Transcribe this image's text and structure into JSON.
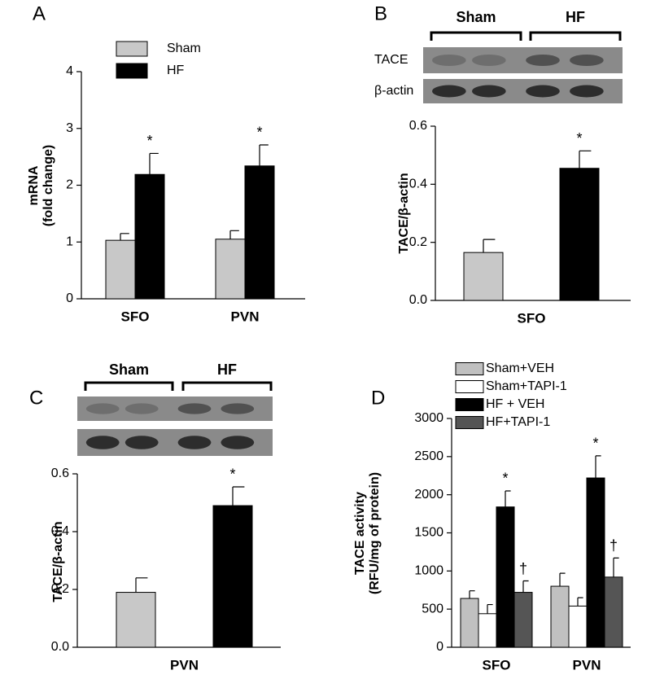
{
  "chart_data": [
    {
      "type": "bar",
      "panel": "A",
      "ylabel": [
        "mRNA",
        "(fold change)"
      ],
      "categories": [
        "SFO",
        "PVN"
      ],
      "series": [
        {
          "name": "Sham",
          "color": "#c8c8c8",
          "values": [
            1.03,
            1.05
          ],
          "errors": [
            0.12,
            0.15
          ]
        },
        {
          "name": "HF",
          "color": "#000000",
          "values": [
            2.19,
            2.34
          ],
          "errors": [
            0.37,
            0.37
          ],
          "markers": [
            "*",
            "*"
          ]
        }
      ],
      "ylim": [
        0,
        4
      ],
      "yticks": [
        0,
        1,
        2,
        3,
        4
      ],
      "legend": "top-left"
    },
    {
      "type": "bar",
      "panel": "B",
      "ylabel": "TACE/β-actin",
      "blot_rows": [
        "TACE",
        "β-actin"
      ],
      "categories": [
        "SFO"
      ],
      "series": [
        {
          "name": "Sham",
          "color": "#c8c8c8",
          "values": [
            0.165
          ],
          "errors": [
            0.045
          ]
        },
        {
          "name": "HF",
          "color": "#000000",
          "values": [
            0.455
          ],
          "errors": [
            0.06
          ],
          "markers": [
            "*"
          ]
        }
      ],
      "ylim": [
        0,
        0.6
      ],
      "yticks": [
        {
          "value": 0,
          "label": "0.0"
        },
        0.2,
        0.4,
        0.6
      ]
    },
    {
      "type": "bar",
      "panel": "C",
      "ylabel": "TACE/β-actin",
      "categories": [
        "PVN"
      ],
      "series": [
        {
          "name": "Sham",
          "color": "#c8c8c8",
          "values": [
            0.19
          ],
          "errors": [
            0.05
          ]
        },
        {
          "name": "HF",
          "color": "#000000",
          "values": [
            0.49
          ],
          "errors": [
            0.065
          ],
          "markers": [
            "*"
          ]
        }
      ],
      "ylim": [
        0,
        0.6
      ],
      "yticks": [
        {
          "value": 0,
          "label": "0.0"
        },
        0.2,
        0.4,
        0.6
      ]
    },
    {
      "type": "bar",
      "panel": "D",
      "ylabel": [
        "TACE activity",
        "(RFU/mg of protein)"
      ],
      "categories": [
        "SFO",
        "PVN"
      ],
      "series": [
        {
          "name": "Sham+VEH",
          "color": "#c0c0c0",
          "values": [
            640,
            800
          ],
          "errors": [
            100,
            170
          ]
        },
        {
          "name": "Sham+TAPI-1",
          "color": "#ffffff",
          "values": [
            440,
            540
          ],
          "errors": [
            120,
            110
          ]
        },
        {
          "name": "HF + VEH",
          "color": "#000000",
          "values": [
            1840,
            2220
          ],
          "errors": [
            210,
            290
          ],
          "markers": [
            "*",
            "*"
          ]
        },
        {
          "name": "HF+TAPI-1",
          "color": "#555555",
          "values": [
            720,
            920
          ],
          "errors": [
            150,
            250
          ],
          "markers": [
            "†",
            "†"
          ]
        }
      ],
      "ylim": [
        0,
        3000
      ],
      "yticks": [
        0,
        500,
        1000,
        1500,
        2000,
        2500,
        3000
      ],
      "legend": "top-left"
    }
  ]
}
